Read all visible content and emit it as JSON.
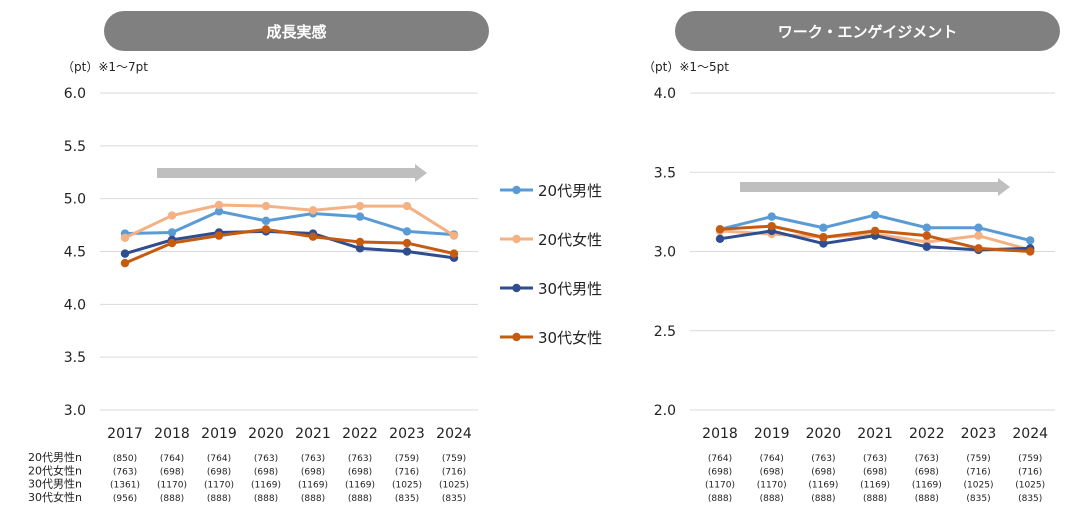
{
  "chart_data": [
    {
      "type": "line",
      "title": "成長実感",
      "unit_note": "（pt）※1～7pt",
      "ylim": [
        3.0,
        6.0
      ],
      "yticks": [
        "3.0",
        "3.5",
        "4.0",
        "4.5",
        "5.0",
        "5.5",
        "6.0"
      ],
      "x": [
        "2017",
        "2018",
        "2019",
        "2020",
        "2021",
        "2022",
        "2023",
        "2024"
      ],
      "series": [
        {
          "name": "20代男性",
          "color": "#5b9bd5",
          "values": [
            4.67,
            4.68,
            4.88,
            4.79,
            4.86,
            4.83,
            4.69,
            4.66
          ]
        },
        {
          "name": "20代女性",
          "color": "#f4b183",
          "values": [
            4.63,
            4.84,
            4.94,
            4.93,
            4.89,
            4.93,
            4.93,
            4.65
          ]
        },
        {
          "name": "30代男性",
          "color": "#2f4d8f",
          "values": [
            4.48,
            4.61,
            4.68,
            4.69,
            4.67,
            4.53,
            4.5,
            4.44
          ]
        },
        {
          "name": "30代女性",
          "color": "#c55a11",
          "values": [
            4.39,
            4.58,
            4.65,
            4.71,
            4.64,
            4.59,
            4.58,
            4.48
          ]
        }
      ],
      "sample_labels": [
        "20代男性n",
        "20代女性n",
        "30代男性n",
        "30代女性n"
      ],
      "samples": [
        [
          "(850)",
          "(764)",
          "(764)",
          "(763)",
          "(763)",
          "(763)",
          "(759)",
          "(759)"
        ],
        [
          "(763)",
          "(698)",
          "(698)",
          "(698)",
          "(698)",
          "(698)",
          "(716)",
          "(716)"
        ],
        [
          "(1361)",
          "(1170)",
          "(1170)",
          "(1169)",
          "(1169)",
          "(1169)",
          "(1025)",
          "(1025)"
        ],
        [
          "(956)",
          "(888)",
          "(888)",
          "(888)",
          "(888)",
          "(888)",
          "(835)",
          "(835)"
        ]
      ]
    },
    {
      "type": "line",
      "title": "ワーク・エンゲイジメント",
      "unit_note": "（pt）※1～5pt",
      "ylim": [
        2.0,
        4.0
      ],
      "yticks": [
        "2.0",
        "2.5",
        "3.0",
        "3.5",
        "4.0"
      ],
      "x": [
        "2018",
        "2019",
        "2020",
        "2021",
        "2022",
        "2023",
        "2024"
      ],
      "series": [
        {
          "name": "20代男性",
          "color": "#5b9bd5",
          "values": [
            3.14,
            3.22,
            3.15,
            3.23,
            3.15,
            3.15,
            3.07
          ]
        },
        {
          "name": "20代女性",
          "color": "#f4b183",
          "values": [
            3.13,
            3.11,
            3.09,
            3.11,
            3.06,
            3.1,
            3.01
          ]
        },
        {
          "name": "30代男性",
          "color": "#2f4d8f",
          "values": [
            3.08,
            3.13,
            3.05,
            3.1,
            3.03,
            3.01,
            3.02
          ]
        },
        {
          "name": "30代女性",
          "color": "#c55a11",
          "values": [
            3.14,
            3.16,
            3.09,
            3.13,
            3.1,
            3.02,
            3.0
          ]
        }
      ],
      "samples": [
        [
          "(764)",
          "(764)",
          "(763)",
          "(763)",
          "(763)",
          "(759)",
          "(759)"
        ],
        [
          "(698)",
          "(698)",
          "(698)",
          "(698)",
          "(698)",
          "(716)",
          "(716)"
        ],
        [
          "(1170)",
          "(1170)",
          "(1169)",
          "(1169)",
          "(1169)",
          "(1025)",
          "(1025)"
        ],
        [
          "(888)",
          "(888)",
          "(888)",
          "(888)",
          "(888)",
          "(835)",
          "(835)"
        ]
      ]
    }
  ],
  "legend": [
    {
      "name": "20代男性",
      "color": "#5b9bd5"
    },
    {
      "name": "20代女性",
      "color": "#f4b183"
    },
    {
      "name": "30代男性",
      "color": "#2f4d8f"
    },
    {
      "name": "30代女性",
      "color": "#c55a11"
    }
  ],
  "colors": {
    "pill": "#808080",
    "grid": "#d9d9d9",
    "arrow": "#bfbfbf"
  }
}
